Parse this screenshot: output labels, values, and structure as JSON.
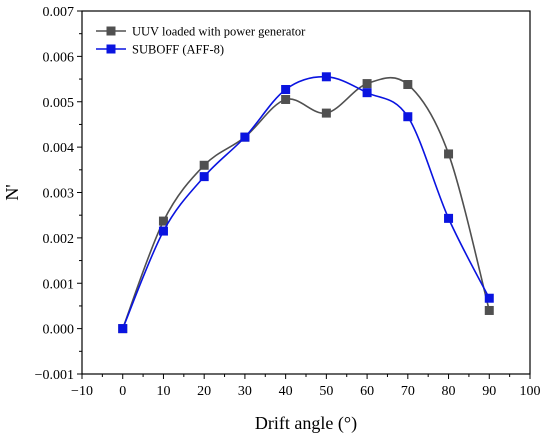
{
  "chart_data": {
    "type": "line",
    "title": "",
    "xlabel": "Drift angle (°)",
    "ylabel": "N'",
    "xlim": [
      -10,
      100
    ],
    "ylim": [
      -0.001,
      0.007
    ],
    "xticks": [
      -10,
      0,
      10,
      20,
      30,
      40,
      50,
      60,
      70,
      80,
      90,
      100
    ],
    "xtick_labels": [
      "−10",
      "0",
      "10",
      "20",
      "30",
      "40",
      "50",
      "60",
      "70",
      "80",
      "90",
      "100"
    ],
    "yticks": [
      -0.001,
      0,
      0.001,
      0.002,
      0.003,
      0.004,
      0.005,
      0.006,
      0.007
    ],
    "ytick_labels": [
      "−0.001",
      "0.000",
      "0.001",
      "0.002",
      "0.003",
      "0.004",
      "0.005",
      "0.006",
      "0.007"
    ],
    "grid": false,
    "legend_position": "top-left",
    "x": [
      0,
      10,
      20,
      30,
      40,
      50,
      60,
      70,
      80,
      90
    ],
    "series": [
      {
        "name": "UUV loaded with power generator",
        "color": "#505050",
        "marker": "square",
        "values": [
          0.0,
          0.00237,
          0.0036,
          0.00422,
          0.00505,
          0.00475,
          0.0054,
          0.00538,
          0.00385,
          0.0004
        ]
      },
      {
        "name": "SUBOFF (AFF-8)",
        "color": "#0a14e0",
        "marker": "square",
        "values": [
          0.0,
          0.00215,
          0.00335,
          0.00422,
          0.00527,
          0.00555,
          0.0052,
          0.00467,
          0.00243,
          0.00067
        ]
      }
    ]
  }
}
